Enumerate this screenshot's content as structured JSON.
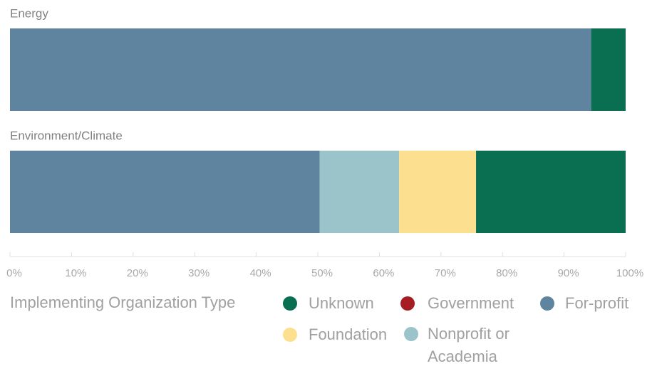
{
  "chart_data": {
    "type": "stacked_bar_horizontal",
    "categories": [
      "Energy",
      "Environment/Climate"
    ],
    "series": [
      {
        "name": "For-profit",
        "color": "#5e84a0",
        "values": [
          94.4,
          50.3
        ]
      },
      {
        "name": "Nonprofit or Academia",
        "color": "#9ac4c9",
        "values": [
          0,
          12.9
        ]
      },
      {
        "name": "Foundation",
        "color": "#fde08f",
        "values": [
          0,
          12.5
        ]
      },
      {
        "name": "Government",
        "color": "#a51d23",
        "values": [
          0,
          0
        ]
      },
      {
        "name": "Unknown",
        "color": "#0a6e50",
        "values": [
          5.6,
          24.3
        ]
      }
    ],
    "xlim": [
      0,
      100
    ],
    "xticks": [
      {
        "value": 0,
        "label": "0%"
      },
      {
        "value": 10,
        "label": "10%"
      },
      {
        "value": 20,
        "label": "20%"
      },
      {
        "value": 30,
        "label": "30%"
      },
      {
        "value": 40,
        "label": "40%"
      },
      {
        "value": 50,
        "label": "50%"
      },
      {
        "value": 60,
        "label": "60%"
      },
      {
        "value": 70,
        "label": "70%"
      },
      {
        "value": 80,
        "label": "80%"
      },
      {
        "value": 90,
        "label": "90%"
      },
      {
        "value": 100,
        "label": "100%"
      }
    ],
    "legend_title": "Implementing Organization Type"
  }
}
